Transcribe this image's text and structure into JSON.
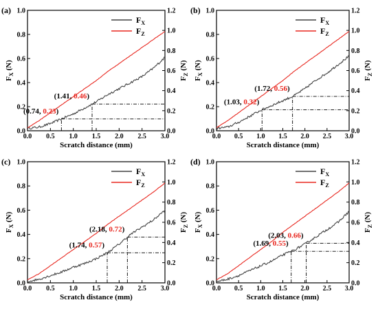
{
  "chart_data": [
    {
      "type": "line",
      "panel_label": "(a)",
      "xlabel": "Scratch distance (mm)",
      "ylabel_left": "F_X (N)",
      "ylabel_right": "F_Z (N)",
      "xlim": [
        0,
        3.0
      ],
      "ylim_left": [
        0,
        1.0
      ],
      "ylim_right": [
        0,
        1.2
      ],
      "x_ticks": [
        0.0,
        0.5,
        1.0,
        1.5,
        2.0,
        2.5,
        3.0
      ],
      "y_ticks_left": [
        0.0,
        0.2,
        0.4,
        0.6,
        0.8,
        1.0
      ],
      "y_ticks_right": [
        0.0,
        0.2,
        0.4,
        0.6,
        0.8,
        1.0,
        1.2
      ],
      "grid": false,
      "legend_position": "top-right",
      "series": [
        {
          "name": "F_X",
          "color": "#404040",
          "axis": "left",
          "x": [
            0,
            0.25,
            0.5,
            0.75,
            1.0,
            1.25,
            1.5,
            1.75,
            2.0,
            2.25,
            2.5,
            2.75,
            3.0
          ],
          "y": [
            0.02,
            0.03,
            0.06,
            0.1,
            0.14,
            0.19,
            0.24,
            0.3,
            0.35,
            0.4,
            0.45,
            0.52,
            0.61
          ]
        },
        {
          "name": "F_Z",
          "color": "#e8261e",
          "axis": "right",
          "x": [
            0,
            0.25,
            0.5,
            0.75,
            1.0,
            1.25,
            1.5,
            1.75,
            2.0,
            2.25,
            2.5,
            2.75,
            3.0
          ],
          "y": [
            0.03,
            0.1,
            0.18,
            0.26,
            0.34,
            0.42,
            0.5,
            0.59,
            0.67,
            0.75,
            0.83,
            0.91,
            0.99
          ]
        }
      ],
      "annotations": [
        {
          "x": 0.74,
          "fx": 0.23,
          "text_x": "0.74",
          "text_fz": "0.23"
        },
        {
          "x": 1.41,
          "fx": 0.46,
          "text_x": "1.41",
          "text_fz": "0.46"
        }
      ]
    },
    {
      "type": "line",
      "panel_label": "(b)",
      "xlabel": "Scratch distance (mm)",
      "ylabel_left": "F_X (N)",
      "ylabel_right": "F_Z (N)",
      "xlim": [
        0,
        3.0
      ],
      "ylim_left": [
        0,
        1.0
      ],
      "ylim_right": [
        0,
        1.2
      ],
      "x_ticks": [
        0.0,
        0.5,
        1.0,
        1.5,
        2.0,
        2.5,
        3.0
      ],
      "y_ticks_left": [
        0.0,
        0.2,
        0.4,
        0.6,
        0.8,
        1.0
      ],
      "y_ticks_right": [
        0.0,
        0.2,
        0.4,
        0.6,
        0.8,
        1.0,
        1.2
      ],
      "grid": false,
      "legend_position": "top-right",
      "series": [
        {
          "name": "F_X",
          "color": "#404040",
          "axis": "left",
          "x": [
            0,
            0.25,
            0.5,
            0.75,
            1.0,
            1.25,
            1.5,
            1.75,
            2.0,
            2.25,
            2.5,
            2.75,
            3.0
          ],
          "y": [
            0.02,
            0.03,
            0.07,
            0.12,
            0.17,
            0.21,
            0.25,
            0.29,
            0.35,
            0.42,
            0.48,
            0.55,
            0.62
          ]
        },
        {
          "name": "F_Z",
          "color": "#e8261e",
          "axis": "right",
          "x": [
            0,
            0.25,
            0.5,
            0.75,
            1.0,
            1.25,
            1.5,
            1.75,
            2.0,
            2.25,
            2.5,
            2.75,
            3.0
          ],
          "y": [
            0.03,
            0.1,
            0.18,
            0.26,
            0.34,
            0.42,
            0.5,
            0.59,
            0.67,
            0.75,
            0.83,
            0.91,
            0.99
          ]
        }
      ],
      "annotations": [
        {
          "x": 1.03,
          "fx": 0.32,
          "text_x": "1.03",
          "text_fz": "0.32"
        },
        {
          "x": 1.72,
          "fx": 0.56,
          "text_x": "1.72",
          "text_fz": "0.56"
        }
      ]
    },
    {
      "type": "line",
      "panel_label": "(c)",
      "xlabel": "Scratch distance (mm)",
      "ylabel_left": "F_X (N)",
      "ylabel_right": "F_Z (N)",
      "xlim": [
        0,
        3.0
      ],
      "ylim_left": [
        0,
        1.0
      ],
      "ylim_right": [
        0,
        1.2
      ],
      "x_ticks": [
        0.0,
        0.5,
        1.0,
        1.5,
        2.0,
        2.5,
        3.0
      ],
      "y_ticks_left": [
        0.0,
        0.2,
        0.4,
        0.6,
        0.8,
        1.0
      ],
      "y_ticks_right": [
        0.0,
        0.2,
        0.4,
        0.6,
        0.8,
        1.0,
        1.2
      ],
      "grid": false,
      "legend_position": "top-right",
      "series": [
        {
          "name": "F_X",
          "color": "#404040",
          "axis": "left",
          "x": [
            0,
            0.25,
            0.5,
            0.75,
            1.0,
            1.25,
            1.5,
            1.75,
            2.0,
            2.25,
            2.5,
            2.75,
            3.0
          ],
          "y": [
            0.01,
            0.03,
            0.06,
            0.09,
            0.13,
            0.16,
            0.2,
            0.25,
            0.32,
            0.4,
            0.46,
            0.52,
            0.6
          ]
        },
        {
          "name": "F_Z",
          "color": "#e8261e",
          "axis": "right",
          "x": [
            0,
            0.25,
            0.5,
            0.75,
            1.0,
            1.25,
            1.5,
            1.75,
            2.0,
            2.25,
            2.5,
            2.75,
            3.0
          ],
          "y": [
            0.03,
            0.09,
            0.17,
            0.25,
            0.33,
            0.41,
            0.49,
            0.58,
            0.66,
            0.74,
            0.82,
            0.9,
            0.99
          ]
        }
      ],
      "annotations": [
        {
          "x": 1.74,
          "fx": 0.57,
          "text_x": "1.74",
          "text_fz": "0.57"
        },
        {
          "x": 2.18,
          "fx": 0.72,
          "text_x": "2.18",
          "text_fz": "0.72"
        }
      ]
    },
    {
      "type": "line",
      "panel_label": "(d)",
      "xlabel": "Scratch distance (mm)",
      "ylabel_left": "F_X (N)",
      "ylabel_right": "F_Z (N)",
      "xlim": [
        0,
        3.0
      ],
      "ylim_left": [
        0,
        1.0
      ],
      "ylim_right": [
        0,
        1.2
      ],
      "x_ticks": [
        0.0,
        0.5,
        1.0,
        1.5,
        2.0,
        2.5,
        3.0
      ],
      "y_ticks_left": [
        0.0,
        0.2,
        0.4,
        0.6,
        0.8,
        1.0
      ],
      "y_ticks_right": [
        0.0,
        0.2,
        0.4,
        0.6,
        0.8,
        1.0,
        1.2
      ],
      "grid": false,
      "legend_position": "top-right",
      "series": [
        {
          "name": "F_X",
          "color": "#404040",
          "axis": "left",
          "x": [
            0,
            0.25,
            0.5,
            0.75,
            1.0,
            1.25,
            1.5,
            1.75,
            2.0,
            2.25,
            2.5,
            2.75,
            3.0
          ],
          "y": [
            0.01,
            0.03,
            0.06,
            0.1,
            0.14,
            0.18,
            0.23,
            0.27,
            0.32,
            0.38,
            0.44,
            0.5,
            0.59
          ]
        },
        {
          "name": "F_Z",
          "color": "#e8261e",
          "axis": "right",
          "x": [
            0,
            0.25,
            0.5,
            0.75,
            1.0,
            1.25,
            1.5,
            1.75,
            2.0,
            2.25,
            2.5,
            2.75,
            3.0
          ],
          "y": [
            0.03,
            0.09,
            0.17,
            0.25,
            0.33,
            0.41,
            0.5,
            0.58,
            0.66,
            0.74,
            0.82,
            0.9,
            0.99
          ]
        }
      ],
      "annotations": [
        {
          "x": 1.69,
          "fx": 0.55,
          "text_x": "1.69",
          "text_fz": "0.55"
        },
        {
          "x": 2.03,
          "fx": 0.66,
          "text_x": "2.03",
          "text_fz": "0.66"
        }
      ]
    }
  ]
}
